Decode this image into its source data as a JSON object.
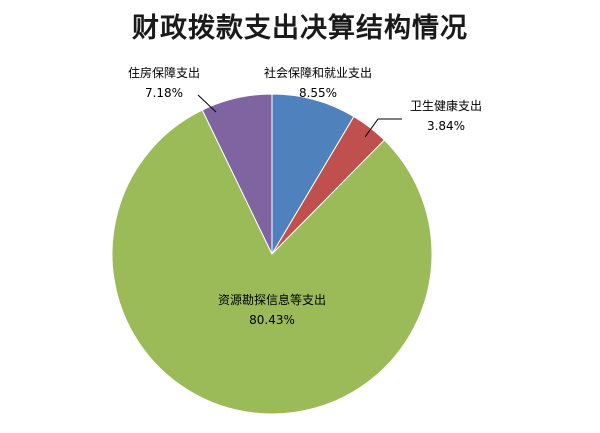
{
  "chart_data": {
    "type": "pie",
    "title": "财政拨款支出决算结构情况",
    "slices": [
      {
        "label": "社会保障和就业支出",
        "value": 8.55,
        "display": "8.55%",
        "color": "#4f81bd"
      },
      {
        "label": "卫生健康支出",
        "value": 3.84,
        "display": "3.84%",
        "color": "#c0504d"
      },
      {
        "label": "资源勘探信息等支出",
        "value": 80.43,
        "display": "80.43%",
        "color": "#9bbb59"
      },
      {
        "label": "住房保障支出",
        "value": 7.18,
        "display": "7.18%",
        "color": "#8064a2"
      }
    ],
    "start_angle": "12 o'clock",
    "direction": "clockwise",
    "legend": "none"
  }
}
